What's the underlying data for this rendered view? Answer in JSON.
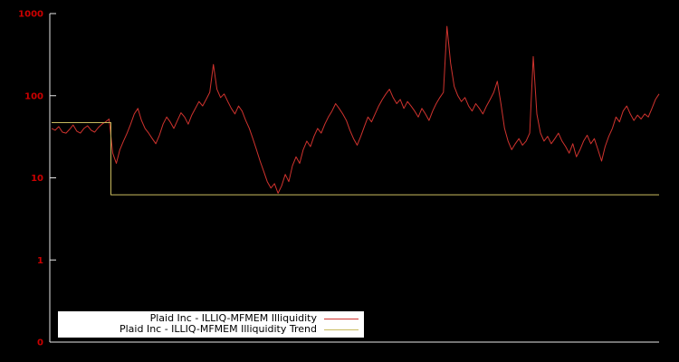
{
  "chart_data": {
    "type": "line",
    "title": "",
    "xlabel": "",
    "ylabel": "",
    "yscale": "log",
    "ylim": [
      0.1,
      1000
    ],
    "grid": false,
    "background_color": "#000000",
    "axis_color": "#e6e6e6",
    "tick_label_color": "#cc0000",
    "yticks": [
      {
        "label": "1000",
        "value": 1000
      },
      {
        "label": "100",
        "value": 100
      },
      {
        "label": "10",
        "value": 10
      },
      {
        "label": "1",
        "value": 1
      },
      {
        "label": "0",
        "value": 0.1
      }
    ],
    "series": [
      {
        "id": "illiquidity",
        "name": "Plaid Inc - ILLIQ-MFMEM Illiquidity",
        "color": "#d0332e",
        "values": [
          40,
          38,
          42,
          36,
          35,
          39,
          44,
          37,
          35,
          40,
          43,
          38,
          36,
          41,
          45,
          48,
          52,
          20,
          15,
          22,
          28,
          35,
          45,
          60,
          70,
          50,
          40,
          35,
          30,
          26,
          33,
          45,
          55,
          48,
          40,
          50,
          62,
          55,
          45,
          58,
          70,
          85,
          75,
          90,
          110,
          240,
          120,
          95,
          105,
          85,
          70,
          60,
          75,
          65,
          50,
          40,
          30,
          22,
          16,
          12,
          9,
          7.5,
          8.5,
          6.5,
          8,
          11,
          9,
          14,
          18,
          15,
          22,
          28,
          24,
          32,
          40,
          35,
          45,
          55,
          65,
          80,
          70,
          60,
          50,
          38,
          30,
          25,
          32,
          42,
          55,
          48,
          60,
          75,
          90,
          105,
          120,
          95,
          80,
          90,
          70,
          85,
          75,
          65,
          55,
          70,
          60,
          50,
          65,
          80,
          95,
          110,
          700,
          250,
          130,
          100,
          85,
          95,
          75,
          65,
          80,
          70,
          60,
          75,
          90,
          110,
          150,
          80,
          40,
          28,
          22,
          26,
          30,
          25,
          28,
          35,
          300,
          60,
          35,
          28,
          32,
          26,
          30,
          35,
          28,
          24,
          20,
          26,
          18,
          22,
          28,
          33,
          26,
          30,
          22,
          16,
          24,
          32,
          40,
          55,
          48,
          65,
          75,
          60,
          50,
          58,
          52,
          60,
          55,
          70,
          90,
          105
        ]
      },
      {
        "id": "trend",
        "name": "Plaid Inc - ILLIQ-MFMEM Illiquidity Trend",
        "color": "#c9bb5e",
        "points": [
          [
            0,
            47
          ],
          [
            16.5,
            47
          ],
          [
            16.5,
            6.2
          ],
          [
            169,
            6.2
          ]
        ]
      }
    ],
    "legend_position": "bottom-left"
  },
  "legend": {
    "items": [
      {
        "label": "Plaid Inc - ILLIQ-MFMEM Illiquidity",
        "color": "#d0332e"
      },
      {
        "label": "Plaid Inc - ILLIQ-MFMEM Illiquidity Trend",
        "color": "#c9bb5e"
      }
    ]
  }
}
